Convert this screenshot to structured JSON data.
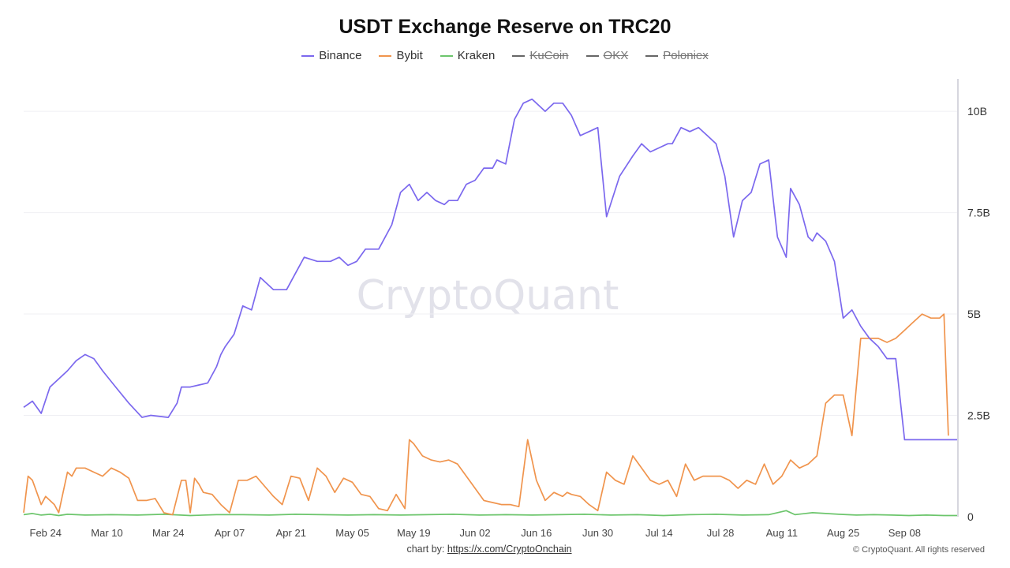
{
  "chart_data": {
    "type": "line",
    "title": "USDT Exchange Reserve on TRC20",
    "x_tick_labels": [
      "Feb 24",
      "Mar 10",
      "Mar 24",
      "Apr 07",
      "Apr 21",
      "May 05",
      "May 19",
      "Jun 02",
      "Jun 16",
      "Jun 30",
      "Jul 14",
      "Jul 28",
      "Aug 11",
      "Aug 25",
      "Sep 08"
    ],
    "y_tick_labels": [
      "0",
      "2.5B",
      "5B",
      "7.5B",
      "10B"
    ],
    "ylim": [
      0,
      10.8
    ],
    "grid": true,
    "legend_placement": "top-center",
    "x_range_days": [
      0,
      213
    ],
    "series": [
      {
        "name": "Binance",
        "color": "#7b68ee",
        "visible": true,
        "x": [
          0,
          2,
          4,
          6,
          10,
          12,
          14,
          16,
          18,
          21,
          24,
          27,
          29,
          33,
          35,
          36,
          38,
          40,
          42,
          44,
          45,
          46,
          48,
          50,
          52,
          54,
          57,
          60,
          62,
          64,
          67,
          70,
          72,
          74,
          76,
          78,
          81,
          84,
          86,
          88,
          90,
          92,
          94,
          96,
          97,
          99,
          101,
          103,
          105,
          107,
          108,
          110,
          112,
          114,
          116,
          118,
          119,
          121,
          123,
          125,
          127,
          129,
          131,
          133,
          136,
          139,
          141,
          143,
          145,
          147,
          148,
          150,
          152,
          154,
          156,
          158,
          160,
          162,
          164,
          166,
          168,
          170,
          172,
          174,
          175,
          177,
          179,
          180,
          181,
          183,
          185,
          187,
          189,
          191,
          193,
          195,
          197,
          199,
          201,
          203,
          205,
          207,
          208,
          210,
          212,
          213
        ],
        "y": [
          2.7,
          2.85,
          2.55,
          3.2,
          3.6,
          3.85,
          4.0,
          3.9,
          3.6,
          3.2,
          2.8,
          2.45,
          2.5,
          2.45,
          2.8,
          3.2,
          3.2,
          3.25,
          3.3,
          3.7,
          4.0,
          4.2,
          4.5,
          5.2,
          5.1,
          5.9,
          5.6,
          5.6,
          6.0,
          6.4,
          6.3,
          6.3,
          6.4,
          6.2,
          6.3,
          6.6,
          6.6,
          7.2,
          8.0,
          8.2,
          7.8,
          8.0,
          7.8,
          7.7,
          7.8,
          7.8,
          8.2,
          8.3,
          8.6,
          8.6,
          8.8,
          8.7,
          9.8,
          10.2,
          10.3,
          10.1,
          10.0,
          10.2,
          10.2,
          9.9,
          9.4,
          9.5,
          9.6,
          7.4,
          8.4,
          8.9,
          9.2,
          9.0,
          9.1,
          9.2,
          9.2,
          9.6,
          9.5,
          9.6,
          9.4,
          9.2,
          8.4,
          6.9,
          7.8,
          8.0,
          8.7,
          8.8,
          6.9,
          6.4,
          8.1,
          7.7,
          6.9,
          6.8,
          7.0,
          6.8,
          6.3,
          4.9,
          5.1,
          4.7,
          4.4,
          4.2,
          3.9,
          3.9,
          1.9,
          1.9,
          1.9,
          1.9,
          1.9,
          1.9,
          1.9,
          1.9
        ]
      },
      {
        "name": "Bybit",
        "color": "#f0944d",
        "visible": true,
        "x": [
          0,
          1,
          2,
          4,
          5,
          7,
          8,
          10,
          11,
          12,
          14,
          16,
          18,
          20,
          22,
          24,
          26,
          28,
          30,
          32,
          34,
          36,
          37,
          38,
          39,
          40,
          41,
          43,
          45,
          47,
          49,
          51,
          53,
          55,
          57,
          59,
          61,
          63,
          65,
          67,
          69,
          71,
          73,
          75,
          77,
          79,
          81,
          83,
          85,
          87,
          88,
          89,
          91,
          93,
          95,
          97,
          99,
          101,
          103,
          105,
          107,
          109,
          111,
          113,
          115,
          117,
          119,
          121,
          123,
          124,
          125,
          127,
          129,
          131,
          133,
          135,
          137,
          139,
          141,
          143,
          145,
          147,
          149,
          151,
          153,
          155,
          157,
          159,
          161,
          163,
          165,
          167,
          169,
          171,
          173,
          175,
          177,
          179,
          181,
          183,
          185,
          187,
          189,
          191,
          193,
          195,
          197,
          199,
          201,
          203,
          205,
          207,
          209,
          210,
          211
        ],
        "y": [
          0.1,
          1.0,
          0.9,
          0.3,
          0.5,
          0.3,
          0.1,
          1.1,
          1.0,
          1.2,
          1.2,
          1.1,
          1.0,
          1.2,
          1.1,
          0.95,
          0.4,
          0.4,
          0.45,
          0.1,
          0.05,
          0.9,
          0.9,
          0.1,
          0.95,
          0.8,
          0.6,
          0.55,
          0.3,
          0.1,
          0.9,
          0.9,
          1.0,
          0.75,
          0.5,
          0.3,
          1.0,
          0.95,
          0.4,
          1.2,
          1.0,
          0.6,
          0.95,
          0.85,
          0.55,
          0.5,
          0.2,
          0.15,
          0.55,
          0.2,
          1.9,
          1.8,
          1.5,
          1.4,
          1.35,
          1.4,
          1.3,
          1.0,
          0.7,
          0.4,
          0.35,
          0.3,
          0.3,
          0.25,
          1.9,
          0.9,
          0.4,
          0.6,
          0.5,
          0.6,
          0.55,
          0.5,
          0.3,
          0.15,
          1.1,
          0.9,
          0.8,
          1.5,
          1.2,
          0.9,
          0.8,
          0.9,
          0.5,
          1.3,
          0.9,
          1.0,
          1.0,
          1.0,
          0.9,
          0.7,
          0.9,
          0.8,
          1.3,
          0.8,
          1.0,
          1.4,
          1.2,
          1.3,
          1.5,
          2.8,
          3.0,
          3.0,
          2.0,
          4.4,
          4.4,
          4.4,
          4.3,
          4.4,
          4.6,
          4.8,
          5.0,
          4.9,
          4.9,
          5.0,
          2.0
        ]
      },
      {
        "name": "Kraken",
        "color": "#6cc56c",
        "visible": true,
        "x": [
          0,
          2,
          4,
          6,
          8,
          10,
          14,
          20,
          26,
          32,
          38,
          44,
          50,
          56,
          62,
          68,
          74,
          80,
          86,
          92,
          98,
          104,
          110,
          116,
          122,
          128,
          134,
          140,
          146,
          152,
          158,
          164,
          170,
          174,
          176,
          180,
          186,
          190,
          194,
          198,
          202,
          206,
          210,
          213
        ],
        "y": [
          0.05,
          0.08,
          0.04,
          0.06,
          0.03,
          0.06,
          0.04,
          0.05,
          0.04,
          0.06,
          0.03,
          0.05,
          0.05,
          0.04,
          0.06,
          0.05,
          0.04,
          0.05,
          0.04,
          0.05,
          0.06,
          0.04,
          0.05,
          0.04,
          0.05,
          0.06,
          0.04,
          0.05,
          0.03,
          0.05,
          0.06,
          0.04,
          0.05,
          0.15,
          0.05,
          0.1,
          0.06,
          0.04,
          0.05,
          0.04,
          0.03,
          0.04,
          0.03,
          0.03
        ]
      },
      {
        "name": "KuCoin",
        "color": "#555555",
        "visible": false
      },
      {
        "name": "OKX",
        "color": "#555555",
        "visible": false
      },
      {
        "name": "Poloniex",
        "color": "#555555",
        "visible": false
      }
    ]
  },
  "watermark": "CryptoQuant",
  "footer": {
    "credit_prefix": "chart by: ",
    "credit_link": "https://x.com/CryptoOnchain",
    "copyright": "© CryptoQuant. All rights reserved"
  }
}
